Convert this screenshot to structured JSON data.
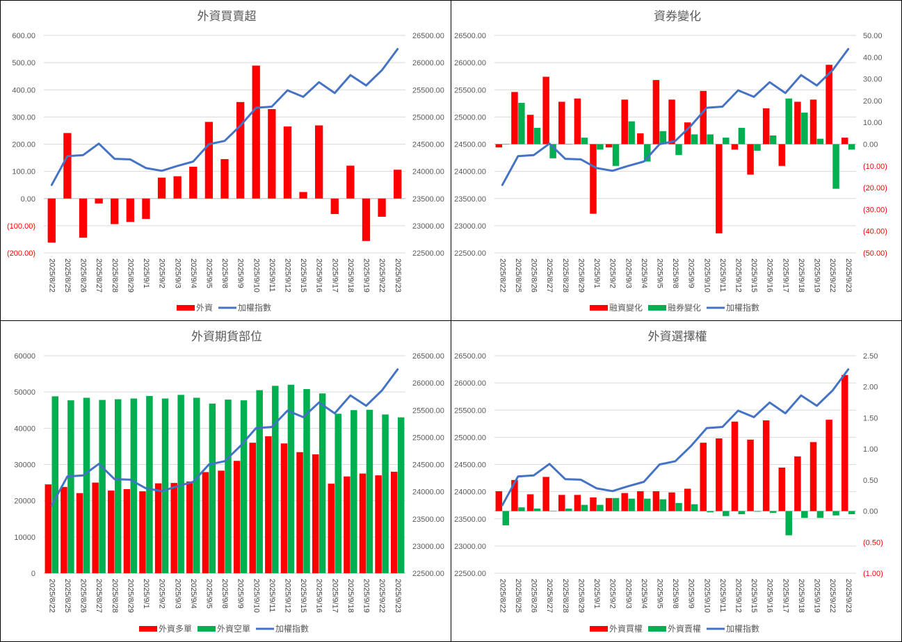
{
  "chart_data": [
    {
      "type": "bar",
      "title": "外資買賣超",
      "categories": [
        "2025/8/22",
        "2025/8/25",
        "2025/8/26",
        "2025/8/27",
        "2025/8/28",
        "2025/8/29",
        "2025/9/1",
        "2025/9/2",
        "2025/9/3",
        "2025/9/4",
        "2025/9/5",
        "2025/9/8",
        "2025/9/9",
        "2025/9/10",
        "2025/9/11",
        "2025/9/12",
        "2025/9/15",
        "2025/9/16",
        "2025/9/17",
        "2025/9/18",
        "2025/9/19",
        "2025/9/22",
        "2025/9/23"
      ],
      "left_axis": {
        "ylim": [
          -200,
          600
        ],
        "ticks": [
          "(200.00)",
          "(100.00)",
          "0.00",
          "100.00",
          "200.00",
          "300.00",
          "400.00",
          "500.00",
          "600.00"
        ]
      },
      "right_axis": {
        "ylim": [
          22500,
          26500
        ],
        "ticks": [
          "22500.00",
          "23000.00",
          "23500.00",
          "24000.00",
          "24500.00",
          "25000.00",
          "25500.00",
          "26000.00",
          "26500.00"
        ]
      },
      "series": [
        {
          "name": "外資",
          "axis": "left",
          "kind": "bar",
          "color": "#ff0000",
          "offset": 0,
          "values": [
            -162,
            241,
            -144,
            -18,
            -94,
            -86,
            -75,
            77,
            82,
            117,
            282,
            145,
            355,
            489,
            329,
            265,
            24,
            269,
            -57,
            121,
            -156,
            -67,
            106
          ]
        },
        {
          "name": "加權指數",
          "axis": "right",
          "kind": "line",
          "color": "#4472c4",
          "values": [
            23750,
            24280,
            24300,
            24510,
            24230,
            24220,
            24060,
            24010,
            24100,
            24180,
            24500,
            24560,
            24840,
            25170,
            25190,
            25490,
            25370,
            25640,
            25440,
            25770,
            25580,
            25860,
            26250
          ]
        }
      ],
      "legend": [
        {
          "label": "外資",
          "kind": "bar",
          "color": "#ff0000"
        },
        {
          "label": "加權指數",
          "kind": "line",
          "color": "#4472c4"
        }
      ]
    },
    {
      "type": "bar",
      "title": "資券變化",
      "categories": [
        "2025/8/22",
        "2025/8/25",
        "2025/8/26",
        "2025/8/27",
        "2025/8/28",
        "2025/8/29",
        "2025/9/1",
        "2025/9/2",
        "2025/9/3",
        "2025/9/4",
        "2025/9/5",
        "2025/9/8",
        "2025/9/9",
        "2025/9/10",
        "2025/9/11",
        "2025/9/12",
        "2025/9/15",
        "2025/9/16",
        "2025/9/17",
        "2025/9/18",
        "2025/9/19",
        "2025/9/22",
        "2025/9/23"
      ],
      "left_axis": {
        "ylim": [
          22500,
          26500
        ],
        "ticks": [
          "22500.00",
          "23000.00",
          "23500.00",
          "24000.00",
          "24500.00",
          "25000.00",
          "25500.00",
          "26000.00",
          "26500.00"
        ]
      },
      "right_axis": {
        "ylim": [
          -50,
          50
        ],
        "ticks": [
          "(50.00)",
          "(40.00)",
          "(30.00)",
          "(20.00)",
          "(10.00)",
          "0.00",
          "10.00",
          "20.00",
          "30.00",
          "40.00",
          "50.00"
        ]
      },
      "series": [
        {
          "name": "融資變化",
          "axis": "right",
          "kind": "bar",
          "color": "#ff0000",
          "offset": -0.22,
          "values": [
            -1.5,
            24,
            13.5,
            31,
            19.5,
            21,
            -32,
            -1.5,
            20.5,
            5,
            29.5,
            20.5,
            10,
            24.5,
            -41,
            -2.5,
            -14,
            16.5,
            -10,
            19.5,
            20.5,
            36.5,
            3
          ]
        },
        {
          "name": "融券變化",
          "axis": "right",
          "kind": "bar",
          "color": "#00b050",
          "offset": 0.22,
          "values": [
            0,
            19,
            7.5,
            -6.5,
            0,
            3,
            -2.5,
            -10,
            10.5,
            -8,
            6,
            -5,
            4.5,
            4.5,
            3,
            7.5,
            -3,
            4,
            21,
            14.5,
            2.5,
            -20.5,
            -2.5
          ]
        },
        {
          "name": "加權指數",
          "axis": "left",
          "kind": "line",
          "color": "#4472c4",
          "values": [
            23750,
            24280,
            24300,
            24510,
            24230,
            24220,
            24060,
            24010,
            24100,
            24180,
            24500,
            24560,
            24840,
            25170,
            25190,
            25490,
            25370,
            25640,
            25440,
            25770,
            25580,
            25860,
            26250
          ]
        }
      ],
      "legend": [
        {
          "label": "融資變化",
          "kind": "bar",
          "color": "#ff0000"
        },
        {
          "label": "融券變化",
          "kind": "bar",
          "color": "#00b050"
        },
        {
          "label": "加權指數",
          "kind": "line",
          "color": "#4472c4"
        }
      ]
    },
    {
      "type": "bar",
      "title": "外資期貨部位",
      "categories": [
        "2025/8/22",
        "2025/8/25",
        "2025/8/26",
        "2025/8/27",
        "2025/8/28",
        "2025/8/29",
        "2025/9/1",
        "2025/9/2",
        "2025/9/3",
        "2025/9/4",
        "2025/9/5",
        "2025/9/8",
        "2025/9/9",
        "2025/9/10",
        "2025/9/11",
        "2025/9/12",
        "2025/9/15",
        "2025/9/16",
        "2025/9/17",
        "2025/9/18",
        "2025/9/19",
        "2025/9/22",
        "2025/9/23"
      ],
      "left_axis": {
        "ylim": [
          0,
          60000
        ],
        "ticks": [
          "0",
          "10000",
          "20000",
          "30000",
          "40000",
          "50000",
          "60000"
        ]
      },
      "right_axis": {
        "ylim": [
          22500,
          26500
        ],
        "ticks": [
          "22500.00",
          "23000.00",
          "23500.00",
          "24000.00",
          "24500.00",
          "25000.00",
          "25500.00",
          "26000.00",
          "26500.00"
        ]
      },
      "series": [
        {
          "name": "外資多單",
          "axis": "left",
          "kind": "bar",
          "color": "#ff0000",
          "offset": -0.22,
          "values": [
            24500,
            23800,
            22100,
            25000,
            22800,
            23200,
            22600,
            24800,
            24900,
            25300,
            27900,
            28300,
            31000,
            36000,
            37800,
            35800,
            33400,
            32800,
            24700,
            26700,
            27500,
            27000,
            28000
          ]
        },
        {
          "name": "外資空單",
          "axis": "left",
          "kind": "bar",
          "color": "#00b050",
          "offset": 0.22,
          "values": [
            48800,
            47700,
            48400,
            47800,
            48000,
            48200,
            48900,
            48200,
            49200,
            48400,
            46800,
            47900,
            47700,
            50500,
            51700,
            52000,
            50800,
            49600,
            44000,
            45000,
            45100,
            43800,
            43000
          ]
        },
        {
          "name": "加權指數",
          "axis": "right",
          "kind": "line",
          "color": "#4472c4",
          "values": [
            23750,
            24280,
            24300,
            24510,
            24230,
            24220,
            24060,
            24010,
            24100,
            24180,
            24500,
            24560,
            24840,
            25170,
            25190,
            25490,
            25370,
            25640,
            25440,
            25770,
            25580,
            25860,
            26250
          ]
        }
      ],
      "legend": [
        {
          "label": "外資多單",
          "kind": "bar",
          "color": "#ff0000"
        },
        {
          "label": "外資空單",
          "kind": "bar",
          "color": "#00b050"
        },
        {
          "label": "加權指數",
          "kind": "line",
          "color": "#4472c4"
        }
      ]
    },
    {
      "type": "bar",
      "title": "外資選擇權",
      "categories": [
        "2025/8/22",
        "2025/8/25",
        "2025/8/26",
        "2025/8/27",
        "2025/8/28",
        "2025/8/29",
        "2025/9/1",
        "2025/9/2",
        "2025/9/3",
        "2025/9/4",
        "2025/9/5",
        "2025/9/8",
        "2025/9/9",
        "2025/9/10",
        "2025/9/11",
        "2025/9/12",
        "2025/9/15",
        "2025/9/16",
        "2025/9/17",
        "2025/9/18",
        "2025/9/19",
        "2025/9/22",
        "2025/9/23"
      ],
      "left_axis": {
        "ylim": [
          22500,
          26500
        ],
        "ticks": [
          "22500.00",
          "23000.00",
          "23500.00",
          "24000.00",
          "24500.00",
          "25000.00",
          "25500.00",
          "26000.00",
          "26500.00"
        ]
      },
      "right_axis": {
        "ylim": [
          -1,
          2.5
        ],
        "ticks": [
          "(1.00)",
          "(0.50)",
          "0.00",
          "0.50",
          "1.00",
          "1.50",
          "2.00",
          "2.50"
        ]
      },
      "series": [
        {
          "name": "外資買權",
          "axis": "right",
          "kind": "bar",
          "color": "#ff0000",
          "offset": -0.22,
          "values": [
            0.32,
            0.5,
            0.27,
            0.55,
            0.26,
            0.26,
            0.22,
            0.21,
            0.29,
            0.32,
            0.32,
            0.3,
            0.36,
            1.1,
            1.17,
            1.44,
            1.15,
            1.46,
            0.7,
            0.88,
            1.11,
            1.47,
            2.19
          ]
        },
        {
          "name": "外資賣權",
          "axis": "right",
          "kind": "bar",
          "color": "#00b050",
          "offset": 0.22,
          "values": [
            -0.23,
            0.06,
            0.04,
            0,
            0.04,
            0.1,
            0.1,
            0.21,
            0.2,
            0.2,
            0.19,
            0.13,
            0.11,
            -0.02,
            -0.08,
            -0.05,
            -0.01,
            -0.03,
            -0.39,
            -0.11,
            -0.11,
            -0.07,
            -0.05
          ]
        },
        {
          "name": "加權指數",
          "axis": "left",
          "kind": "line",
          "color": "#4472c4",
          "values": [
            23750,
            24280,
            24300,
            24510,
            24230,
            24220,
            24060,
            24010,
            24100,
            24180,
            24500,
            24560,
            24840,
            25170,
            25190,
            25490,
            25370,
            25640,
            25440,
            25770,
            25580,
            25860,
            26250
          ]
        }
      ],
      "legend": [
        {
          "label": "外資買權",
          "kind": "bar",
          "color": "#ff0000"
        },
        {
          "label": "外資賣權",
          "kind": "bar",
          "color": "#00b050"
        },
        {
          "label": "加權指數",
          "kind": "line",
          "color": "#4472c4"
        }
      ]
    }
  ]
}
